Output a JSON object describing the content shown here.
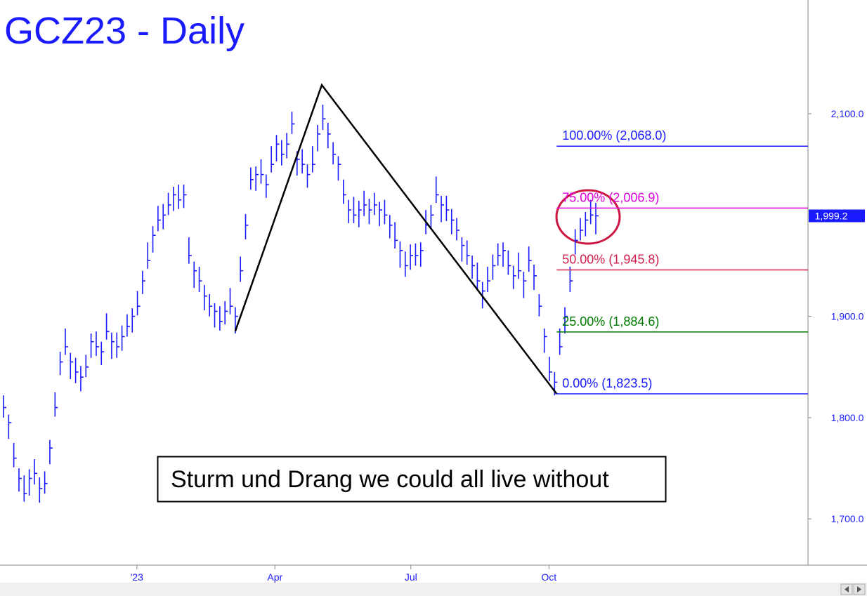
{
  "chart_data": {
    "type": "ohlc",
    "title": "GCZ23 - Daily",
    "color": "#1a1aff",
    "xlim": [
      -0.68,
      156.2
    ],
    "xticks": [
      {
        "value": 25.9,
        "label": "'23"
      },
      {
        "value": 52.7,
        "label": "Apr"
      },
      {
        "value": 79.1,
        "label": "Jul"
      },
      {
        "value": 105.9,
        "label": "Oct"
      }
    ],
    "ylim": [
      1654.4,
      2212.3
    ],
    "yticks": [
      {
        "value": 1700,
        "label": "1,700.0"
      },
      {
        "value": 1800,
        "label": "1,800.0"
      },
      {
        "value": 1900,
        "label": "1,900.0"
      },
      {
        "value": 2100,
        "label": "2,100.0"
      }
    ],
    "high": [
      1822,
      1803,
      1775,
      1750,
      1743,
      1749,
      1759,
      1741,
      1747,
      1778,
      1825,
      1865,
      1888,
      1864,
      1859,
      1851,
      1862,
      1883,
      1885,
      1875,
      1903,
      1884,
      1884,
      1891,
      1902,
      1908,
      1925,
      1945,
      1973,
      1989,
      2009,
      2011,
      2022,
      2028,
      2030,
      2030,
      1978,
      1954,
      1949,
      1931,
      1922,
      1913,
      1910,
      1915,
      1928,
      1909,
      1959,
      2001,
      2047,
      2048,
      2055,
      2040,
      2068,
      2079,
      2074,
      2081,
      2102,
      2063,
      2065,
      2050,
      2068,
      2089,
      2109,
      2091,
      2072,
      2058,
      2035,
      2015,
      2018,
      2014,
      2024,
      2016,
      2022,
      2013,
      2015,
      2000,
      1993,
      1974,
      1964,
      1971,
      1972,
      1973,
      2005,
      2010,
      2038,
      2019,
      2019,
      2006,
      1997,
      1978,
      1975,
      1960,
      1953,
      1934,
      1949,
      1961,
      1972,
      1973,
      1965,
      1950,
      1963,
      1944,
      1969,
      1951,
      1922,
      1888,
      1860,
      1845,
      1888,
      1909,
      1949,
      1986,
      1997,
      2003,
      2015,
      2012
    ],
    "low": [
      1800,
      1779,
      1751,
      1727,
      1717,
      1723,
      1734,
      1716,
      1725,
      1754,
      1801,
      1842,
      1862,
      1838,
      1834,
      1826,
      1840,
      1859,
      1861,
      1852,
      1877,
      1858,
      1859,
      1866,
      1880,
      1884,
      1901,
      1922,
      1947,
      1963,
      1984,
      1986,
      2000,
      2004,
      2006,
      2007,
      1952,
      1928,
      1924,
      1906,
      1900,
      1889,
      1886,
      1892,
      1902,
      1883,
      1934,
      1976,
      2025,
      2024,
      2031,
      2017,
      2042,
      2053,
      2049,
      2056,
      2080,
      2039,
      2041,
      2027,
      2042,
      2063,
      2084,
      2066,
      2050,
      2034,
      2011,
      1992,
      1992,
      1988,
      1999,
      1991,
      2000,
      1989,
      1991,
      1977,
      1967,
      1948,
      1939,
      1946,
      1950,
      1949,
      1981,
      1987,
      2012,
      1993,
      1994,
      1981,
      1975,
      1954,
      1951,
      1937,
      1927,
      1908,
      1924,
      1936,
      1950,
      1949,
      1941,
      1927,
      1937,
      1918,
      1944,
      1926,
      1900,
      1864,
      1836,
      1822,
      1862,
      1883,
      1924,
      1961,
      1975,
      1979,
      1991,
      1981
    ],
    "close": [
      1810,
      1795,
      1760,
      1740,
      1725,
      1740,
      1745,
      1730,
      1735,
      1770,
      1810,
      1855,
      1870,
      1855,
      1845,
      1840,
      1850,
      1875,
      1870,
      1865,
      1885,
      1875,
      1870,
      1880,
      1890,
      1900,
      1910,
      1935,
      1955,
      1980,
      1995,
      2000,
      2010,
      2020,
      2015,
      2020,
      1960,
      1945,
      1935,
      1920,
      1910,
      1905,
      1895,
      1905,
      1910,
      1900,
      1945,
      1990,
      2035,
      2040,
      2040,
      2030,
      2050,
      2070,
      2060,
      2070,
      2090,
      2055,
      2050,
      2040,
      2050,
      2080,
      2095,
      2080,
      2060,
      2050,
      2020,
      2005,
      2000,
      2005,
      2010,
      2005,
      2010,
      2005,
      2000,
      1990,
      1975,
      1965,
      1950,
      1960,
      1960,
      1965,
      1990,
      2000,
      2020,
      2010,
      2005,
      1995,
      1985,
      1970,
      1960,
      1950,
      1935,
      1925,
      1935,
      1950,
      1960,
      1965,
      1950,
      1940,
      1945,
      1935,
      1955,
      1940,
      1910,
      1880,
      1845,
      1835,
      1870,
      1900,
      1935,
      1975,
      1985,
      1995,
      2000,
      1999.2
    ],
    "pattern": {
      "color": "#000000",
      "x": [
        45,
        61.8,
        107.4
      ],
      "values": [
        1885.2,
        2128.4,
        1823.5
      ]
    },
    "levels": [
      {
        "label": "100.00% (2,068.0)",
        "value": 2068.0,
        "color": "#1a1aff"
      },
      {
        "label": "75.00% (2,006.9)",
        "value": 2006.9,
        "color": "#e000e0"
      },
      {
        "label": "50.00% (1,945.8)",
        "value": 1945.8,
        "color": "#d0204a"
      },
      {
        "label": "25.00% (1,884.6)",
        "value": 1884.6,
        "color": "#007a00"
      },
      {
        "label": "0.00% (1,823.5)",
        "value": 1823.5,
        "color": "#1a1aff"
      }
    ],
    "levels_start": 107.4,
    "last_price": {
      "value": 1999.2,
      "label": "1,999.2"
    },
    "annotation": "Sturm und Drang we could all live without"
  }
}
